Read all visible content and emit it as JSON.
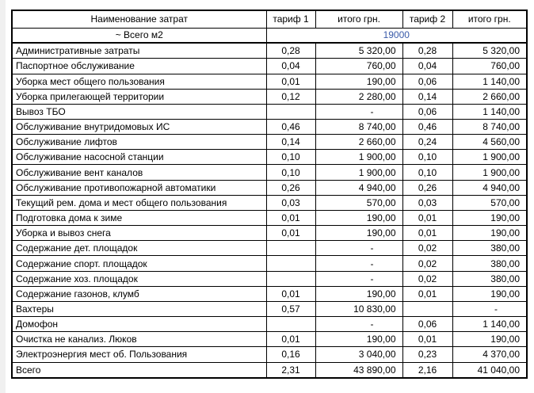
{
  "table": {
    "headers": [
      "Наименование затрат",
      "тариф 1",
      "итого грн.",
      "тариф 2",
      "итого грн."
    ],
    "total_m2": {
      "label": "~ Всего м2",
      "value": "19000"
    },
    "colors": {
      "value_blue": "#3A5BA9",
      "border": "#000000"
    },
    "rows": [
      {
        "name": "Административные затраты",
        "t1": "0,28",
        "s1": "5 320,00",
        "t2": "0,28",
        "s2": "5 320,00"
      },
      {
        "name": "Паспортное обслуживание",
        "t1": "0,04",
        "s1": "760,00",
        "t2": "0,04",
        "s2": "760,00"
      },
      {
        "name": "Уборка мест общего пользования",
        "t1": "0,01",
        "s1": "190,00",
        "t2": "0,06",
        "s2": "1 140,00"
      },
      {
        "name": "Уборка прилегающей территории",
        "t1": "0,12",
        "s1": "2 280,00",
        "t2": "0,14",
        "s2": "2 660,00"
      },
      {
        "name": "Вывоз ТБО",
        "t1": "",
        "s1": "-",
        "t2": "0,06",
        "s2": "1 140,00"
      },
      {
        "name": "Обслуживание внутридомовых ИС",
        "t1": "0,46",
        "s1": "8 740,00",
        "t2": "0,46",
        "s2": "8 740,00"
      },
      {
        "name": "Обслуживание лифтов",
        "t1": "0,14",
        "s1": "2 660,00",
        "t2": "0,24",
        "s2": "4 560,00"
      },
      {
        "name": "Обслуживание насосной станции",
        "t1": "0,10",
        "s1": "1 900,00",
        "t2": "0,10",
        "s2": "1 900,00"
      },
      {
        "name": "Обслуживание вент каналов",
        "t1": "0,10",
        "s1": "1 900,00",
        "t2": "0,10",
        "s2": "1 900,00"
      },
      {
        "name": "Обслуживание противопожарной автоматики",
        "t1": "0,26",
        "s1": "4 940,00",
        "t2": "0,26",
        "s2": "4 940,00"
      },
      {
        "name": "Текущий рем. дома и мест общего пользования",
        "t1": "0,03",
        "s1": "570,00",
        "t2": "0,03",
        "s2": "570,00"
      },
      {
        "name": "Подготовка дома к зиме",
        "t1": "0,01",
        "s1": "190,00",
        "t2": "0,01",
        "s2": "190,00"
      },
      {
        "name": "Уборка и вывоз снега",
        "t1": "0,01",
        "s1": "190,00",
        "t2": "0,01",
        "s2": "190,00"
      },
      {
        "name": "Содержание дет.  площадок",
        "t1": "",
        "s1": "-",
        "t2": "0,02",
        "s2": "380,00"
      },
      {
        "name": "Содержание спорт.  площадок",
        "t1": "",
        "s1": "-",
        "t2": "0,02",
        "s2": "380,00"
      },
      {
        "name": "Содержание хоз.  площадок",
        "t1": "",
        "s1": "-",
        "t2": "0,02",
        "s2": "380,00"
      },
      {
        "name": "Содержание газонов, клумб",
        "t1": "0,01",
        "s1": "190,00",
        "t2": "0,01",
        "s2": "190,00"
      },
      {
        "name": "Вахтеры",
        "t1": "0,57",
        "s1": "10 830,00",
        "t2": "",
        "s2": "-"
      },
      {
        "name": "Домофон",
        "t1": "",
        "s1": "-",
        "t2": "0,06",
        "s2": "1 140,00"
      },
      {
        "name": "Очистка не канализ. Люков",
        "t1": "0,01",
        "s1": "190,00",
        "t2": "0,01",
        "s2": "190,00"
      },
      {
        "name": "Электроэнергия мест об. Пользования",
        "t1": "0,16",
        "s1": "3 040,00",
        "t2": "0,23",
        "s2": "4 370,00"
      },
      {
        "name": "Всего",
        "t1": "2,31",
        "s1": "43 890,00",
        "t2": "2,16",
        "s2": "41 040,00"
      }
    ]
  }
}
